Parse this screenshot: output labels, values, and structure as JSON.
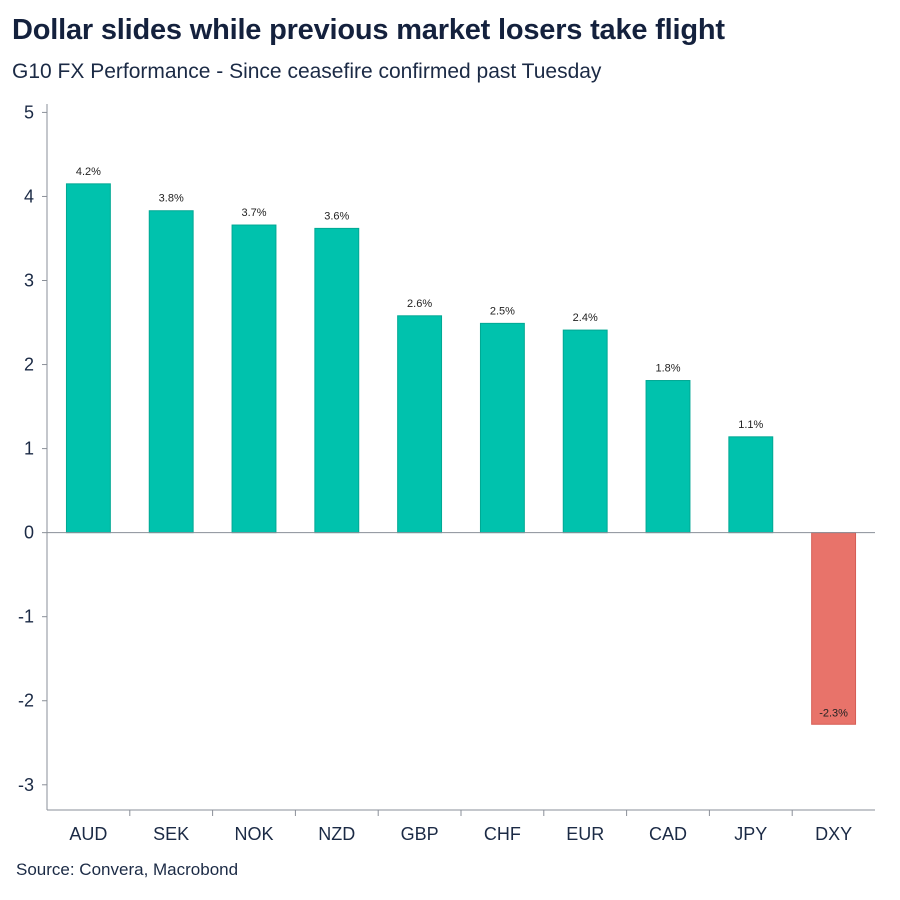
{
  "header": {
    "title": "Dollar slides while previous market losers take flight",
    "subtitle": "G10 FX Performance - Since ceasefire confirmed past Tuesday"
  },
  "footer": {
    "source": "Source: Convera, Macrobond"
  },
  "chart_data": {
    "type": "bar",
    "title": "Dollar slides while previous market losers take flight",
    "subtitle": "G10 FX Performance - Since ceasefire confirmed past Tuesday",
    "xlabel": "",
    "ylabel": "",
    "categories": [
      "AUD",
      "SEK",
      "NOK",
      "NZD",
      "GBP",
      "CHF",
      "EUR",
      "CAD",
      "JPY",
      "DXY"
    ],
    "values": [
      4.15,
      3.83,
      3.66,
      3.62,
      2.58,
      2.49,
      2.41,
      1.81,
      1.14,
      -2.28
    ],
    "data_labels": [
      "4.2%",
      "3.8%",
      "3.7%",
      "3.6%",
      "2.6%",
      "2.5%",
      "2.4%",
      "1.8%",
      "1.1%",
      "-2.3%"
    ],
    "ylim": [
      -3.3,
      5.1
    ],
    "yticks": [
      5,
      4,
      3,
      2,
      1,
      0,
      -1,
      -2,
      -3
    ],
    "ytick_labels": [
      "5",
      "4",
      "3",
      "2",
      "1",
      "0",
      "-1",
      "-2",
      "-3"
    ],
    "grid": false,
    "legend": "none",
    "colors": {
      "positive": "#00c2ad",
      "negative": "#e8736a",
      "positive_outline": "#00a894",
      "negative_outline": "#d65e55"
    }
  }
}
